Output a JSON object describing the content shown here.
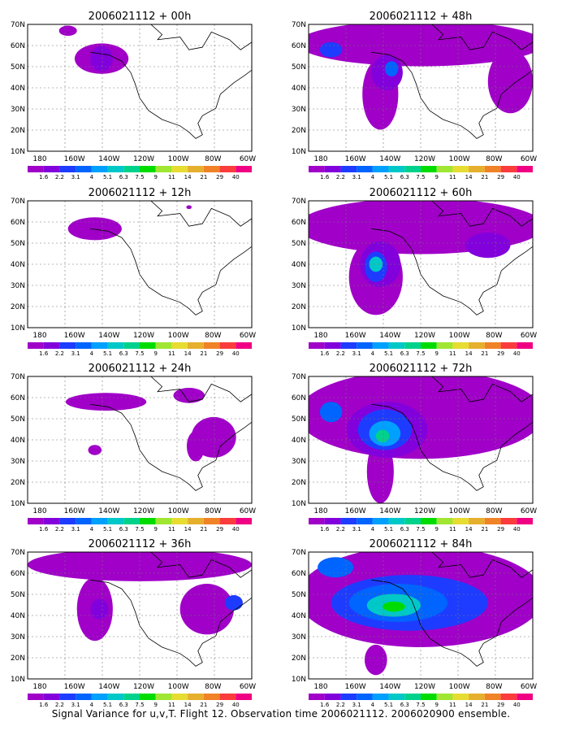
{
  "panels": [
    {
      "title": "2006021112 + 00h"
    },
    {
      "title": "2006021112 + 48h"
    },
    {
      "title": "2006021112 + 12h"
    },
    {
      "title": "2006021112 + 60h"
    },
    {
      "title": "2006021112 + 24h"
    },
    {
      "title": "2006021112 + 72h"
    },
    {
      "title": "2006021112 + 36h"
    },
    {
      "title": "2006021112 + 84h"
    }
  ],
  "lat_labels": [
    "70N",
    "60N",
    "50N",
    "40N",
    "30N",
    "20N",
    "10N"
  ],
  "lon_labels": [
    "180",
    "160W",
    "140W",
    "120W",
    "100W",
    "80W",
    "60W"
  ],
  "colorbar": {
    "labels": [
      "1.6",
      "2.2",
      "3.1",
      "4",
      "5.1",
      "6.3",
      "7.5",
      "9",
      "11",
      "14",
      "21",
      "29",
      "40"
    ],
    "colors": [
      "#a000c8",
      "#8200dc",
      "#1e3cff",
      "#0064ff",
      "#00a0ff",
      "#00c8c8",
      "#00d28c",
      "#00dc00",
      "#a0e632",
      "#e6dc32",
      "#e6af2d",
      "#f08228",
      "#fa3c3c",
      "#f00082"
    ]
  },
  "footer": "Signal Variance for u,v,T. Flight 12. Observation time 2006021112. 2006020900 ensemble."
}
